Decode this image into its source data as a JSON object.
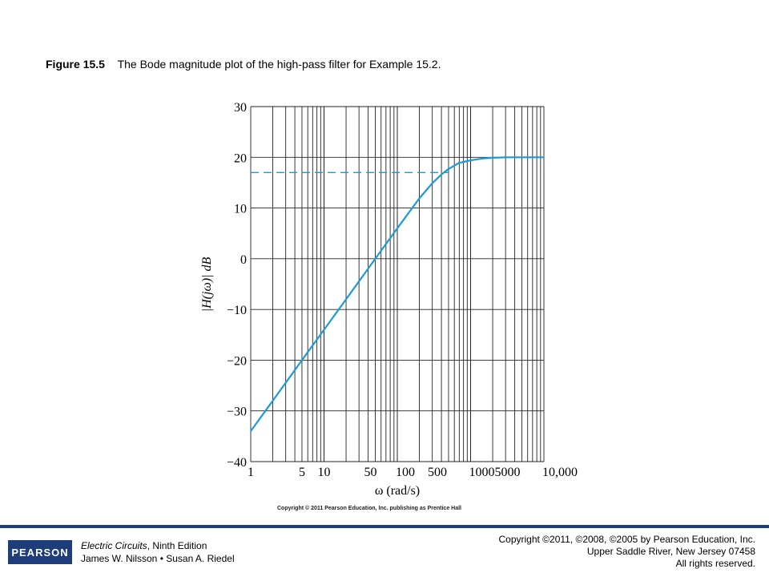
{
  "caption": {
    "label": "Figure 15.5",
    "text": "The Bode magnitude plot of the high-pass filter for Example 15.2."
  },
  "credit": "Copyright © 2011 Pearson Education, Inc. publishing as Prentice Hall",
  "footer": {
    "logo_text": "PEARSON",
    "book_title": "Electric Circuits",
    "book_edition": ", Ninth Edition",
    "authors": "James W. Nilsson • Susan A. Riedel",
    "copyright_lines": [
      "Copyright ©2011, ©2008, ©2005 by Pearson Education, Inc.",
      "Upper Saddle River, New Jersey 07458",
      "All rights reserved."
    ],
    "brand_color": "#1f3d7a"
  },
  "chart_data": {
    "type": "line",
    "x_scale": "log",
    "xlim": [
      1,
      10000
    ],
    "ylim": [
      -40,
      30
    ],
    "y_ticks": [
      30,
      20,
      10,
      0,
      -10,
      -20,
      -30,
      -40
    ],
    "y_tick_labels": [
      "30",
      "20",
      "10",
      "0",
      "−10",
      "−20",
      "−30",
      "−40"
    ],
    "x_ticks": [
      1,
      5,
      10,
      50,
      100,
      500,
      1000,
      5000,
      10000
    ],
    "x_tick_labels": [
      "1",
      "5",
      "10",
      "50",
      "100",
      "500",
      "1000",
      "5000",
      "10,000"
    ],
    "xlabel": "ω (rad/s)",
    "ylabel": "|H(jω)| dB",
    "grid": true,
    "curve_color": "#1a9ad6",
    "series": [
      {
        "x": [
          1,
          2,
          5,
          10,
          20,
          50,
          100,
          200,
          300,
          400,
          500,
          700,
          1000,
          1500,
          2000,
          3000,
          5000,
          10000
        ],
        "y": [
          -34,
          -28,
          -20,
          -14,
          -8,
          0,
          6,
          11.9,
          14.9,
          16.6,
          17.7,
          18.9,
          19.4,
          19.8,
          19.9,
          20,
          20,
          20
        ]
      }
    ],
    "reference_line": {
      "y": 17,
      "x_start": 1,
      "x_end": 500,
      "style": "dashed"
    }
  }
}
